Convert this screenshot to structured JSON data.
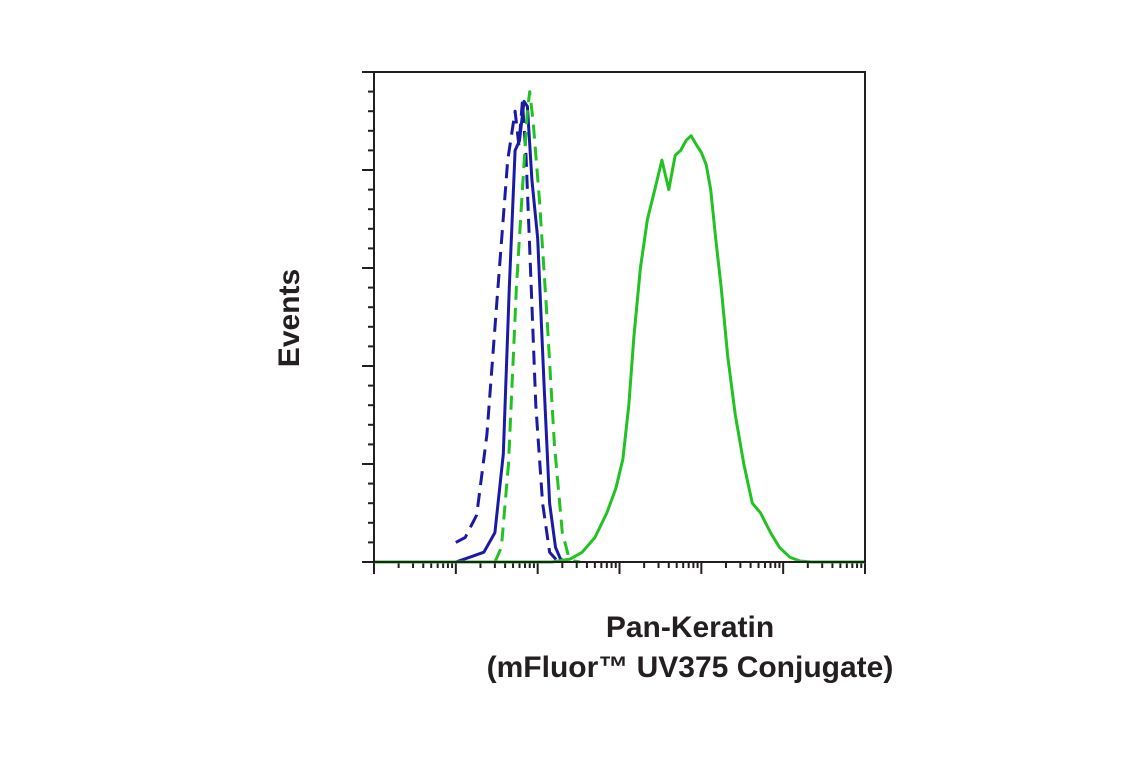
{
  "chart_data": {
    "type": "line",
    "xlabel_line1": "Pan-Keratin",
    "xlabel_line2": "(mFluor™ UV375 Conjugate)",
    "ylabel": "Events",
    "xscale": "log",
    "xlim": [
      0.1,
      100000
    ],
    "ylim": [
      0,
      500
    ],
    "grid": false,
    "series": [
      {
        "style": "dashed",
        "color": "#1a1aa6",
        "x": [
          1,
          1.3,
          1.8,
          2.4,
          3.2,
          4.3,
          5.3,
          5.9,
          6.5,
          7.2,
          8.0,
          9.5,
          11.5,
          14,
          17,
          20
        ],
        "y": [
          20,
          25,
          48,
          130,
          270,
          410,
          460,
          425,
          470,
          415,
          320,
          160,
          60,
          10,
          2,
          0
        ]
      },
      {
        "style": "solid",
        "color": "#1a1aa6",
        "x": [
          1,
          1.5,
          2.2,
          3.0,
          3.8,
          4.5,
          5.3,
          6.0,
          6.8,
          7.5,
          8.5,
          10,
          12,
          14,
          16.5,
          19,
          22
        ],
        "y": [
          0,
          5,
          10,
          30,
          110,
          280,
          420,
          430,
          470,
          465,
          390,
          330,
          180,
          60,
          15,
          3,
          0
        ]
      },
      {
        "style": "dashed",
        "color": "#22c222",
        "x": [
          3.0,
          3.6,
          4.4,
          5.5,
          6.5,
          7.5,
          8.0,
          8.8,
          10.5,
          13,
          16,
          20,
          24,
          28,
          33
        ],
        "y": [
          0,
          15,
          100,
          280,
          380,
          460,
          480,
          450,
          370,
          250,
          120,
          30,
          5,
          1,
          0
        ]
      },
      {
        "style": "solid",
        "color": "#22c222",
        "x": [
          0.1,
          15,
          25,
          35,
          50,
          70,
          90,
          110,
          130,
          150,
          180,
          220,
          270,
          330,
          400,
          480,
          560,
          650,
          750,
          880,
          1000,
          1150,
          1300,
          1500,
          1750,
          2100,
          2600,
          3300,
          4200,
          5300,
          7000,
          9000,
          12000,
          16000,
          22000,
          100000
        ],
        "y": [
          0,
          0,
          3,
          10,
          25,
          50,
          75,
          105,
          160,
          230,
          300,
          350,
          380,
          410,
          380,
          415,
          420,
          430,
          435,
          425,
          418,
          405,
          380,
          330,
          280,
          210,
          150,
          100,
          60,
          50,
          30,
          15,
          5,
          1,
          0,
          0
        ]
      }
    ]
  }
}
